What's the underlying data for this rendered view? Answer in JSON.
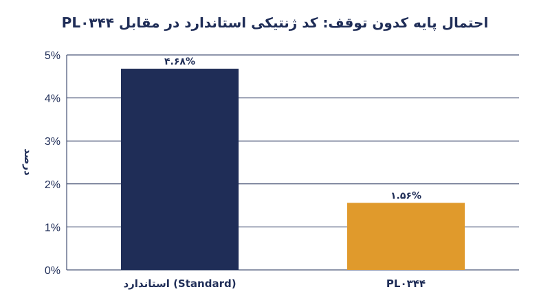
{
  "colors": {
    "title": "#1f2d57",
    "axis": "#1f2d57",
    "grid": "#1f2d57",
    "text": "#1f2d57"
  },
  "chart_data": {
    "type": "bar",
    "title": "احتمال پایه کدون توقف: کد ژنتیکی استاندارد در مقابل PL۰۳۴۴",
    "xlabel": "",
    "ylabel": "درصد",
    "ylim": [
      0,
      5
    ],
    "yticks": [
      0,
      1,
      2,
      3,
      4,
      5
    ],
    "ytick_labels": [
      "0%",
      "1%",
      "2%",
      "3%",
      "4%",
      "5%"
    ],
    "grid": true,
    "categories": [
      "استاندارد (Standard)",
      "PL۰۳۴۴"
    ],
    "values": [
      4.68,
      1.56
    ],
    "value_labels": [
      "۴.۶۸%",
      "۱.۵۶%"
    ],
    "bar_colors": [
      "#1f2d57",
      "#e09a2c"
    ]
  }
}
